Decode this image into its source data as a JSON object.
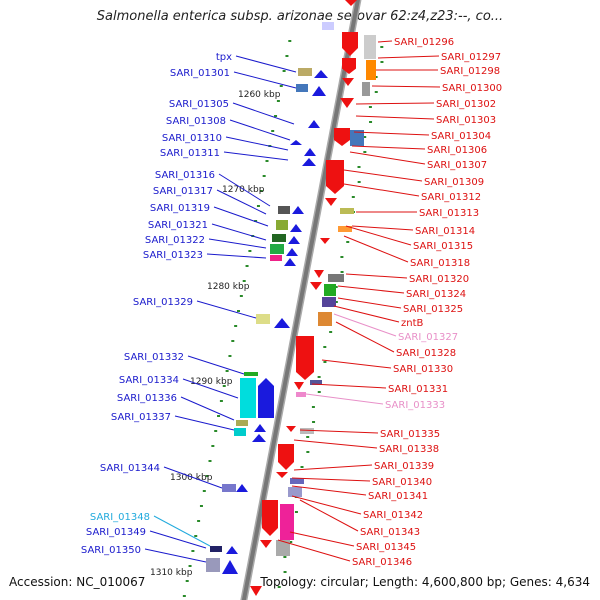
{
  "title": "Salmonella enterica subsp. arizonae serovar 62:z4,z23:--, co...",
  "footer": {
    "accession": "Accession: NC_010067",
    "topology": "Topology: circular; Length: 4,600,800 bp; Genes: 4,634"
  },
  "colors": {
    "left_label": "#1a1acc",
    "right_label": "#dd1111",
    "pink_label": "#e890c8",
    "cyan_label": "#22aadd",
    "backbone": "#888888"
  },
  "scale_labels": [
    "1260 kbp",
    "1270 kbp",
    "1280 kbp",
    "1290 kbp",
    "1300 kbp",
    "1310 kbp"
  ],
  "left_genes": [
    {
      "name": "tpx",
      "color": "blue"
    },
    {
      "name": "SARI_01301",
      "color": "blue"
    },
    {
      "name": "SARI_01305",
      "color": "blue"
    },
    {
      "name": "SARI_01308",
      "color": "blue"
    },
    {
      "name": "SARI_01310",
      "color": "blue"
    },
    {
      "name": "SARI_01311",
      "color": "blue"
    },
    {
      "name": "SARI_01316",
      "color": "blue"
    },
    {
      "name": "SARI_01317",
      "color": "blue"
    },
    {
      "name": "SARI_01319",
      "color": "blue"
    },
    {
      "name": "SARI_01321",
      "color": "blue"
    },
    {
      "name": "SARI_01322",
      "color": "blue"
    },
    {
      "name": "SARI_01323",
      "color": "blue"
    },
    {
      "name": "SARI_01329",
      "color": "blue"
    },
    {
      "name": "SARI_01332",
      "color": "blue"
    },
    {
      "name": "SARI_01334",
      "color": "blue"
    },
    {
      "name": "SARI_01336",
      "color": "blue"
    },
    {
      "name": "SARI_01337",
      "color": "blue"
    },
    {
      "name": "SARI_01344",
      "color": "blue"
    },
    {
      "name": "SARI_01348",
      "color": "cyan"
    },
    {
      "name": "SARI_01349",
      "color": "blue"
    },
    {
      "name": "SARI_01350",
      "color": "blue"
    }
  ],
  "right_genes": [
    {
      "name": "SARI_01296",
      "color": "red"
    },
    {
      "name": "SARI_01297",
      "color": "red"
    },
    {
      "name": "SARI_01298",
      "color": "red"
    },
    {
      "name": "SARI_01300",
      "color": "red"
    },
    {
      "name": "SARI_01302",
      "color": "red"
    },
    {
      "name": "SARI_01303",
      "color": "red"
    },
    {
      "name": "SARI_01304",
      "color": "red"
    },
    {
      "name": "SARI_01306",
      "color": "red"
    },
    {
      "name": "SARI_01307",
      "color": "red"
    },
    {
      "name": "SARI_01309",
      "color": "red"
    },
    {
      "name": "SARI_01312",
      "color": "red"
    },
    {
      "name": "SARI_01313",
      "color": "red"
    },
    {
      "name": "SARI_01314",
      "color": "red"
    },
    {
      "name": "SARI_01315",
      "color": "red"
    },
    {
      "name": "SARI_01318",
      "color": "red"
    },
    {
      "name": "SARI_01320",
      "color": "red"
    },
    {
      "name": "SARI_01324",
      "color": "red"
    },
    {
      "name": "SARI_01325",
      "color": "red"
    },
    {
      "name": "zntB",
      "color": "red"
    },
    {
      "name": "SARI_01327",
      "color": "pink"
    },
    {
      "name": "SARI_01328",
      "color": "red"
    },
    {
      "name": "SARI_01330",
      "color": "red"
    },
    {
      "name": "SARI_01331",
      "color": "red"
    },
    {
      "name": "SARI_01333",
      "color": "pink"
    },
    {
      "name": "SARI_01335",
      "color": "red"
    },
    {
      "name": "SARI_01338",
      "color": "red"
    },
    {
      "name": "SARI_01339",
      "color": "red"
    },
    {
      "name": "SARI_01340",
      "color": "red"
    },
    {
      "name": "SARI_01341",
      "color": "red"
    },
    {
      "name": "SARI_01342",
      "color": "red"
    },
    {
      "name": "SARI_01343",
      "color": "red"
    },
    {
      "name": "SARI_01345",
      "color": "red"
    },
    {
      "name": "SARI_01346",
      "color": "red"
    }
  ]
}
